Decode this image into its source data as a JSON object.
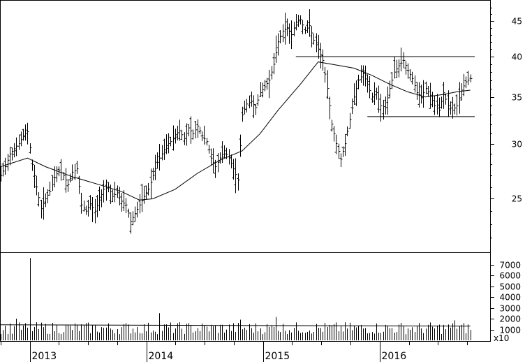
{
  "chart_data": [
    {
      "type": "ohlc",
      "panel": "price",
      "scale": "log",
      "ylim": [
        21,
        48
      ],
      "y_ticks": [
        25,
        30,
        35,
        40,
        45
      ],
      "x_ticks": [
        "2013",
        "2014",
        "2015",
        "2016"
      ],
      "xlim": [
        "2012-10-01",
        "2016-10-24"
      ],
      "line_color": "#000000",
      "bars_weekly_close": [
        [
          "2012-10-01",
          27.0
        ],
        [
          "2012-10-15",
          27.8
        ],
        [
          "2012-10-29",
          29.0
        ],
        [
          "2012-11-12",
          29.5
        ],
        [
          "2012-11-26",
          30.0
        ],
        [
          "2012-12-10",
          30.8
        ],
        [
          "2012-12-24",
          31.2
        ],
        [
          "2013-01-07",
          28.0
        ],
        [
          "2013-01-21",
          26.0
        ],
        [
          "2013-02-04",
          24.2
        ],
        [
          "2013-02-18",
          25.0
        ],
        [
          "2013-03-04",
          25.6
        ],
        [
          "2013-03-18",
          26.8
        ],
        [
          "2013-04-01",
          27.5
        ],
        [
          "2013-04-15",
          27.0
        ],
        [
          "2013-04-29",
          26.2
        ],
        [
          "2013-05-13",
          27.3
        ],
        [
          "2013-05-27",
          27.6
        ],
        [
          "2013-06-10",
          24.5
        ],
        [
          "2013-06-24",
          24.0
        ],
        [
          "2013-07-08",
          24.6
        ],
        [
          "2013-07-22",
          24.0
        ],
        [
          "2013-08-05",
          24.9
        ],
        [
          "2013-08-19",
          25.8
        ],
        [
          "2013-09-02",
          26.0
        ],
        [
          "2013-09-16",
          25.2
        ],
        [
          "2013-09-30",
          25.5
        ],
        [
          "2013-10-14",
          24.8
        ],
        [
          "2013-10-28",
          24.5
        ],
        [
          "2013-11-11",
          23.2
        ],
        [
          "2013-11-25",
          23.8
        ],
        [
          "2013-12-09",
          24.5
        ],
        [
          "2013-12-23",
          25.2
        ],
        [
          "2014-01-06",
          25.8
        ],
        [
          "2014-01-20",
          27.0
        ],
        [
          "2014-02-03",
          28.2
        ],
        [
          "2014-02-17",
          29.0
        ],
        [
          "2014-03-03",
          29.8
        ],
        [
          "2014-03-17",
          30.2
        ],
        [
          "2014-03-31",
          30.9
        ],
        [
          "2014-04-14",
          31.3
        ],
        [
          "2014-04-28",
          30.5
        ],
        [
          "2014-05-12",
          31.6
        ],
        [
          "2014-05-26",
          31.0
        ],
        [
          "2014-06-09",
          31.8
        ],
        [
          "2014-06-23",
          30.8
        ],
        [
          "2014-07-07",
          30.2
        ],
        [
          "2014-07-21",
          28.6
        ],
        [
          "2014-08-04",
          27.8
        ],
        [
          "2014-08-18",
          28.6
        ],
        [
          "2014-09-01",
          29.3
        ],
        [
          "2014-09-15",
          28.6
        ],
        [
          "2014-09-29",
          27.6
        ],
        [
          "2014-10-13",
          26.6
        ],
        [
          "2014-10-27",
          33.0
        ],
        [
          "2014-11-10",
          34.2
        ],
        [
          "2014-11-24",
          34.5
        ],
        [
          "2014-12-08",
          33.8
        ],
        [
          "2014-12-22",
          35.5
        ],
        [
          "2015-01-05",
          36.2
        ],
        [
          "2015-01-19",
          37.0
        ],
        [
          "2015-02-02",
          39.0
        ],
        [
          "2015-02-16",
          42.0
        ],
        [
          "2015-03-02",
          43.5
        ],
        [
          "2015-03-16",
          44.0
        ],
        [
          "2015-03-30",
          43.0
        ],
        [
          "2015-04-13",
          44.8
        ],
        [
          "2015-04-27",
          45.2
        ],
        [
          "2015-05-11",
          43.6
        ],
        [
          "2015-05-25",
          44.3
        ],
        [
          "2015-06-08",
          42.2
        ],
        [
          "2015-06-22",
          41.0
        ],
        [
          "2015-07-06",
          39.5
        ],
        [
          "2015-07-20",
          36.0
        ],
        [
          "2015-08-03",
          32.0
        ],
        [
          "2015-08-17",
          30.0
        ],
        [
          "2015-08-31",
          28.5
        ],
        [
          "2015-09-14",
          30.0
        ],
        [
          "2015-09-28",
          32.5
        ],
        [
          "2015-10-12",
          35.0
        ],
        [
          "2015-10-26",
          37.0
        ],
        [
          "2015-11-09",
          37.8
        ],
        [
          "2015-11-23",
          36.5
        ],
        [
          "2015-12-07",
          35.0
        ],
        [
          "2015-12-21",
          35.5
        ],
        [
          "2016-01-04",
          34.0
        ],
        [
          "2016-01-18",
          33.8
        ],
        [
          "2016-02-01",
          36.0
        ],
        [
          "2016-02-15",
          38.0
        ],
        [
          "2016-02-29",
          38.8
        ],
        [
          "2016-03-14",
          39.5
        ],
        [
          "2016-03-28",
          38.2
        ],
        [
          "2016-04-11",
          37.2
        ],
        [
          "2016-04-25",
          35.5
        ],
        [
          "2016-05-09",
          35.0
        ],
        [
          "2016-05-23",
          36.0
        ],
        [
          "2016-06-06",
          35.2
        ],
        [
          "2016-06-20",
          34.0
        ],
        [
          "2016-07-04",
          33.5
        ],
        [
          "2016-07-18",
          35.5
        ],
        [
          "2016-08-01",
          34.0
        ],
        [
          "2016-08-15",
          33.5
        ],
        [
          "2016-08-29",
          34.0
        ],
        [
          "2016-09-12",
          35.8
        ],
        [
          "2016-09-26",
          36.8
        ],
        [
          "2016-10-10",
          37.2
        ]
      ],
      "moving_average": [
        [
          "2012-10-01",
          27.8
        ],
        [
          "2012-12-24",
          28.6
        ],
        [
          "2013-02-18",
          27.8
        ],
        [
          "2013-05-13",
          26.9
        ],
        [
          "2013-08-05",
          26.2
        ],
        [
          "2013-10-14",
          25.6
        ],
        [
          "2013-12-09",
          24.9
        ],
        [
          "2014-01-20",
          25.0
        ],
        [
          "2014-03-31",
          25.8
        ],
        [
          "2014-06-09",
          27.2
        ],
        [
          "2014-08-18",
          28.4
        ],
        [
          "2014-10-27",
          29.3
        ],
        [
          "2014-12-22",
          31.0
        ],
        [
          "2015-02-16",
          33.5
        ],
        [
          "2015-04-27",
          36.5
        ],
        [
          "2015-06-22",
          39.3
        ],
        [
          "2015-08-17",
          38.9
        ],
        [
          "2015-10-12",
          38.5
        ],
        [
          "2015-12-07",
          37.6
        ],
        [
          "2016-02-01",
          36.5
        ],
        [
          "2016-03-28",
          35.6
        ],
        [
          "2016-05-23",
          35.0
        ],
        [
          "2016-07-18",
          35.3
        ],
        [
          "2016-08-29",
          35.6
        ],
        [
          "2016-10-10",
          35.8
        ]
      ],
      "trendlines": [
        {
          "from": [
            "2015-04-13",
            40.0
          ],
          "to": [
            "2016-10-24",
            40.0
          ]
        },
        {
          "from": [
            "2015-11-23",
            32.8
          ],
          "to": [
            "2016-10-24",
            32.8
          ]
        }
      ]
    },
    {
      "type": "bar",
      "panel": "volume",
      "ylim": [
        0,
        8000
      ],
      "y_ticks": [
        1000,
        2000,
        3000,
        4000,
        5000,
        6000,
        7000
      ],
      "multiplier_label": "x10",
      "baseline_volume": 1250,
      "spikes": [
        [
          "2012-12-31",
          7600
        ],
        [
          "2014-02-10",
          2500
        ],
        [
          "2012-11-19",
          2000
        ],
        [
          "2015-02-09",
          2150
        ],
        [
          "2016-08-22",
          1850
        ],
        [
          "2014-10-20",
          1900
        ]
      ]
    }
  ]
}
